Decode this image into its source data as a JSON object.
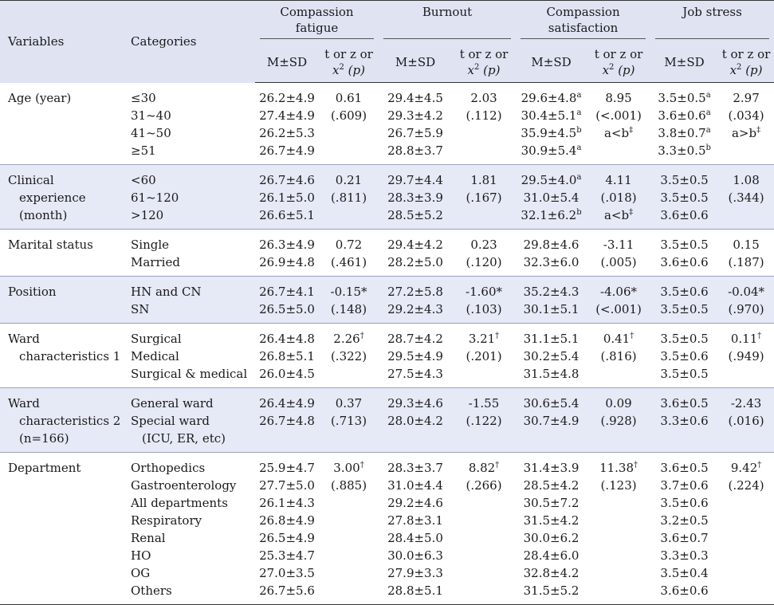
{
  "header": {
    "variables": "Variables",
    "categories": "Categories",
    "groups": [
      {
        "line1": "Compassion",
        "line2": "fatigue"
      },
      {
        "line1": "Burnout",
        "line2": ""
      },
      {
        "line1": "Compassion",
        "line2": "satisfaction"
      },
      {
        "line1": "Job stress",
        "line2": ""
      }
    ],
    "msd": "M±SD",
    "stat_line1": "t or z or",
    "stat_x": "x",
    "stat_sup": "2",
    "stat_p": "(p)"
  },
  "rows": [
    {
      "variable": [
        "Age (year)"
      ],
      "categories": [
        "≤30",
        "31~40",
        "41~50",
        "≥51"
      ],
      "cf": {
        "m": [
          "26.2±4.9",
          "27.4±4.9",
          "26.2±5.3",
          "26.7±4.9"
        ],
        "s": [
          "0.61",
          "(.609)"
        ]
      },
      "bo": {
        "m": [
          "29.4±4.5",
          "29.3±4.2",
          "26.7±5.9",
          "28.8±3.7"
        ],
        "s": [
          "2.03",
          "(.112)"
        ]
      },
      "cs": {
        "m": [
          "29.6±4.8",
          "30.4±5.1",
          "35.9±4.5",
          "30.9±5.4"
        ],
        "msup": [
          "a",
          "a",
          "b",
          "a"
        ],
        "s": [
          "8.95",
          "(<.001)",
          "a<b"
        ],
        "ssup": [
          "",
          "",
          "‡"
        ]
      },
      "js": {
        "m": [
          "3.5±0.5",
          "3.6±0.6",
          "3.8±0.7",
          "3.3±0.5"
        ],
        "msup": [
          "a",
          "a",
          "a",
          "b"
        ],
        "s": [
          "2.97",
          "(.034)",
          "a>b"
        ],
        "ssup": [
          "",
          "",
          "‡"
        ]
      }
    },
    {
      "variable": [
        "Clinical",
        "experience",
        "(month)"
      ],
      "categories": [
        "<60",
        "61~120",
        ">120"
      ],
      "cf": {
        "m": [
          "26.7±4.6",
          "26.1±5.0",
          "26.6±5.1"
        ],
        "s": [
          "0.21",
          "(.811)"
        ]
      },
      "bo": {
        "m": [
          "29.7±4.4",
          "28.3±3.9",
          "28.5±5.2"
        ],
        "s": [
          "1.81",
          "(.167)"
        ]
      },
      "cs": {
        "m": [
          "29.5±4.0",
          "31.0±5.4",
          "32.1±6.2"
        ],
        "msup": [
          "a",
          "",
          "b"
        ],
        "s": [
          "4.11",
          "(.018)",
          "a<b"
        ],
        "ssup": [
          "",
          "",
          "‡"
        ]
      },
      "js": {
        "m": [
          "3.5±0.5",
          "3.5±0.5",
          "3.6±0.6"
        ],
        "s": [
          "1.08",
          "(.344)"
        ]
      }
    },
    {
      "variable": [
        "Marital status"
      ],
      "categories": [
        "Single",
        "Married"
      ],
      "cf": {
        "m": [
          "26.3±4.9",
          "26.9±4.8"
        ],
        "s": [
          "0.72",
          "(.461)"
        ]
      },
      "bo": {
        "m": [
          "29.4±4.2",
          "28.2±5.0"
        ],
        "s": [
          "0.23",
          "(.120)"
        ]
      },
      "cs": {
        "m": [
          "29.8±4.6",
          "32.3±6.0"
        ],
        "s": [
          "-3.11",
          "(.005)"
        ]
      },
      "js": {
        "m": [
          "3.5±0.5",
          "3.6±0.6"
        ],
        "s": [
          "0.15",
          "(.187)"
        ]
      }
    },
    {
      "variable": [
        "Position"
      ],
      "categories": [
        "HN and CN",
        "SN"
      ],
      "cf": {
        "m": [
          "26.7±4.1",
          "26.5±5.0"
        ],
        "s": [
          "-0.15*",
          "(.148)"
        ]
      },
      "bo": {
        "m": [
          "27.2±5.8",
          "29.2±4.3"
        ],
        "s": [
          "-1.60*",
          "(.103)"
        ]
      },
      "cs": {
        "m": [
          "35.2±4.3",
          "30.1±5.1"
        ],
        "s": [
          "-4.06*",
          "(<.001)"
        ]
      },
      "js": {
        "m": [
          "3.5±0.6",
          "3.5±0.5"
        ],
        "s": [
          "-0.04*",
          "(.970)"
        ]
      }
    },
    {
      "variable": [
        "Ward",
        "characteristics 1"
      ],
      "categories": [
        "Surgical",
        "Medical",
        "Surgical & medical"
      ],
      "cf": {
        "m": [
          "26.4±4.8",
          "26.8±5.1",
          "26.0±4.5"
        ],
        "s": [
          "2.26",
          "(.322)"
        ],
        "ssup": [
          "†",
          ""
        ]
      },
      "bo": {
        "m": [
          "28.7±4.2",
          "29.5±4.9",
          "27.5±4.3"
        ],
        "s": [
          "3.21",
          "(.201)"
        ],
        "ssup": [
          "†",
          ""
        ]
      },
      "cs": {
        "m": [
          "31.1±5.1",
          "30.2±5.4",
          "31.5±4.8"
        ],
        "s": [
          "0.41",
          "(.816)"
        ],
        "ssup": [
          "†",
          ""
        ]
      },
      "js": {
        "m": [
          "3.5±0.5",
          "3.5±0.6",
          "3.5±0.5"
        ],
        "s": [
          "0.11",
          "(.949)"
        ],
        "ssup": [
          "†",
          ""
        ]
      }
    },
    {
      "variable": [
        "Ward",
        "characteristics 2",
        "(n=166)"
      ],
      "categories": [
        "General ward",
        "Special ward",
        "(ICU, ER, etc)"
      ],
      "cf": {
        "m": [
          "26.4±4.9",
          "26.7±4.8"
        ],
        "s": [
          "0.37",
          "(.713)"
        ]
      },
      "bo": {
        "m": [
          "29.3±4.6",
          "28.0±4.2"
        ],
        "s": [
          "-1.55",
          "(.122)"
        ]
      },
      "cs": {
        "m": [
          "30.6±5.4",
          "30.7±4.9"
        ],
        "s": [
          "0.09",
          "(.928)"
        ]
      },
      "js": {
        "m": [
          "3.6±0.5",
          "3.3±0.6"
        ],
        "s": [
          "-2.43",
          "(.016)"
        ]
      }
    },
    {
      "variable": [
        "Department"
      ],
      "categories": [
        "Orthopedics",
        "Gastroenterology",
        "All departments",
        "Respiratory",
        "Renal",
        "HO",
        "OG",
        "Others"
      ],
      "cf": {
        "m": [
          "25.9±4.7",
          "27.7±5.0",
          "26.1±4.3",
          "26.8±4.9",
          "26.5±4.9",
          "25.3±4.7",
          "27.0±3.5",
          "26.7±5.6"
        ],
        "s": [
          "3.00",
          "(.885)"
        ],
        "ssup": [
          "†",
          ""
        ]
      },
      "bo": {
        "m": [
          "28.3±3.7",
          "31.0±4.4",
          "29.2±4.6",
          "27.8±3.1",
          "28.4±5.0",
          "30.0±6.3",
          "27.9±3.3",
          "28.8±5.1"
        ],
        "s": [
          "8.82",
          "(.266)"
        ],
        "ssup": [
          "†",
          ""
        ]
      },
      "cs": {
        "m": [
          "31.4±3.9",
          "28.5±4.2",
          "30.5±7.2",
          "31.5±4.2",
          "30.0±6.2",
          "28.4±6.0",
          "32.8±4.2",
          "31.5±5.2"
        ],
        "s": [
          "11.38",
          "(.123)"
        ],
        "ssup": [
          "†",
          ""
        ]
      },
      "js": {
        "m": [
          "3.6±0.5",
          "3.7±0.6",
          "3.5±0.6",
          "3.2±0.5",
          "3.6±0.7",
          "3.3±0.3",
          "3.5±0.4",
          "3.6±0.6"
        ],
        "s": [
          "9.42",
          "(.224)"
        ],
        "ssup": [
          "†",
          ""
        ]
      }
    }
  ]
}
